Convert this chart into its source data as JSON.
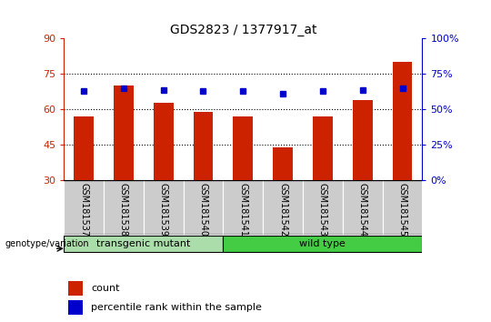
{
  "title": "GDS2823 / 1377917_at",
  "samples": [
    "GSM181537",
    "GSM181538",
    "GSM181539",
    "GSM181540",
    "GSM181541",
    "GSM181542",
    "GSM181543",
    "GSM181544",
    "GSM181545"
  ],
  "counts": [
    57,
    70,
    63,
    59,
    57,
    44,
    57,
    64,
    80
  ],
  "percentiles": [
    63,
    65,
    64,
    63,
    63,
    61,
    63,
    64,
    65
  ],
  "ylim_left": [
    30,
    90
  ],
  "ylim_right": [
    0,
    100
  ],
  "yticks_left": [
    30,
    45,
    60,
    75,
    90
  ],
  "yticks_right": [
    0,
    25,
    50,
    75,
    100
  ],
  "bar_color": "#cc2200",
  "dot_color": "#0000cc",
  "group1_label": "transgenic mutant",
  "group2_label": "wild type",
  "group1_color": "#aaddaa",
  "group2_color": "#44cc44",
  "group1_indices": [
    0,
    1,
    2,
    3
  ],
  "group2_indices": [
    4,
    5,
    6,
    7,
    8
  ],
  "legend_count_label": "count",
  "legend_percentile_label": "percentile rank within the sample",
  "left_label_color": "#cc2200",
  "right_label_color": "#0000cc",
  "tick_area_color": "#cccccc",
  "genotype_label": "genotype/variation"
}
